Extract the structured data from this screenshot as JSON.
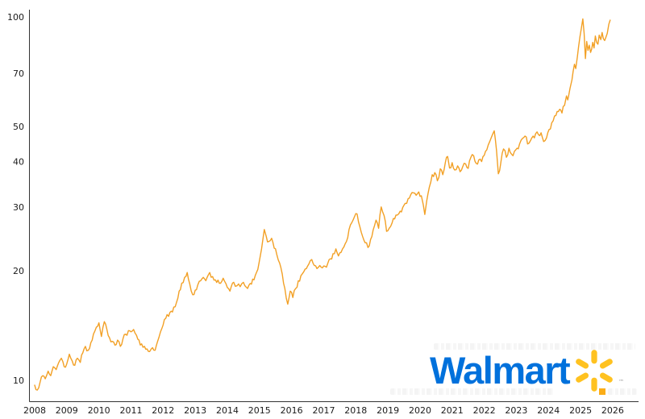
{
  "chart_data": {
    "type": "line",
    "title": "",
    "xlabel": "",
    "ylabel": "",
    "y_scale": "log",
    "grid": false,
    "legend_position": "none",
    "x_ticks": [
      2008,
      2009,
      2010,
      2011,
      2012,
      2013,
      2014,
      2015,
      2016,
      2017,
      2018,
      2019,
      2020,
      2021,
      2022,
      2023,
      2024,
      2025,
      2026
    ],
    "y_ticks": [
      10,
      20,
      30,
      40,
      50,
      70,
      100
    ],
    "xlim": [
      2007.82,
      2026.15
    ],
    "ylim": [
      8.8,
      105
    ],
    "axis_color": "#333333",
    "series": [
      {
        "name": "Walmart",
        "color": "#F2A025",
        "points": [
          [
            2008.0,
            9.7
          ],
          [
            2008.08,
            9.4
          ],
          [
            2008.17,
            9.9
          ],
          [
            2008.25,
            10.3
          ],
          [
            2008.33,
            10.1
          ],
          [
            2008.42,
            10.6
          ],
          [
            2008.5,
            10.3
          ],
          [
            2008.58,
            10.9
          ],
          [
            2008.67,
            10.7
          ],
          [
            2008.75,
            11.2
          ],
          [
            2008.83,
            11.5
          ],
          [
            2008.92,
            10.9
          ],
          [
            2009.0,
            11.1
          ],
          [
            2009.08,
            11.8
          ],
          [
            2009.17,
            11.3
          ],
          [
            2009.25,
            11.0
          ],
          [
            2009.33,
            11.5
          ],
          [
            2009.42,
            11.2
          ],
          [
            2009.5,
            11.9
          ],
          [
            2009.58,
            12.4
          ],
          [
            2009.67,
            12.1
          ],
          [
            2009.75,
            12.7
          ],
          [
            2009.83,
            13.4
          ],
          [
            2009.92,
            14.0
          ],
          [
            2010.0,
            14.4
          ],
          [
            2010.08,
            13.2
          ],
          [
            2010.17,
            14.5
          ],
          [
            2010.25,
            13.8
          ],
          [
            2010.33,
            13.1
          ],
          [
            2010.42,
            12.8
          ],
          [
            2010.5,
            12.5
          ],
          [
            2010.58,
            12.9
          ],
          [
            2010.67,
            12.4
          ],
          [
            2010.75,
            13.0
          ],
          [
            2010.83,
            13.4
          ],
          [
            2010.92,
            13.7
          ],
          [
            2011.0,
            13.6
          ],
          [
            2011.08,
            13.8
          ],
          [
            2011.17,
            13.3
          ],
          [
            2011.25,
            12.9
          ],
          [
            2011.33,
            12.6
          ],
          [
            2011.42,
            12.4
          ],
          [
            2011.5,
            12.2
          ],
          [
            2011.58,
            12.0
          ],
          [
            2011.67,
            12.3
          ],
          [
            2011.75,
            12.1
          ],
          [
            2011.83,
            12.8
          ],
          [
            2011.92,
            13.6
          ],
          [
            2012.0,
            14.2
          ],
          [
            2012.08,
            14.8
          ],
          [
            2012.17,
            15.0
          ],
          [
            2012.25,
            15.5
          ],
          [
            2012.33,
            15.9
          ],
          [
            2012.42,
            16.4
          ],
          [
            2012.5,
            17.6
          ],
          [
            2012.58,
            18.5
          ],
          [
            2012.67,
            19.2
          ],
          [
            2012.75,
            19.8
          ],
          [
            2012.83,
            18.4
          ],
          [
            2012.92,
            17.2
          ],
          [
            2013.0,
            17.7
          ],
          [
            2013.08,
            18.3
          ],
          [
            2013.17,
            18.8
          ],
          [
            2013.25,
            19.2
          ],
          [
            2013.33,
            18.8
          ],
          [
            2013.45,
            19.8
          ],
          [
            2013.54,
            19.3
          ],
          [
            2013.63,
            18.9
          ],
          [
            2013.75,
            18.5
          ],
          [
            2013.87,
            19.1
          ],
          [
            2014.0,
            18.0
          ],
          [
            2014.08,
            17.6
          ],
          [
            2014.2,
            18.6
          ],
          [
            2014.3,
            18.2
          ],
          [
            2014.4,
            18.1
          ],
          [
            2014.5,
            18.6
          ],
          [
            2014.63,
            17.9
          ],
          [
            2014.75,
            18.4
          ],
          [
            2014.83,
            18.9
          ],
          [
            2014.95,
            20.2
          ],
          [
            2015.03,
            22.1
          ],
          [
            2015.1,
            24.2
          ],
          [
            2015.15,
            26.0
          ],
          [
            2015.21,
            24.9
          ],
          [
            2015.29,
            24.1
          ],
          [
            2015.38,
            24.6
          ],
          [
            2015.46,
            23.1
          ],
          [
            2015.54,
            22.2
          ],
          [
            2015.63,
            21.0
          ],
          [
            2015.71,
            19.6
          ],
          [
            2015.79,
            17.9
          ],
          [
            2015.88,
            16.2
          ],
          [
            2015.96,
            17.6
          ],
          [
            2016.04,
            16.9
          ],
          [
            2016.13,
            17.9
          ],
          [
            2016.21,
            18.8
          ],
          [
            2016.29,
            19.4
          ],
          [
            2016.38,
            19.9
          ],
          [
            2016.46,
            20.3
          ],
          [
            2016.54,
            20.9
          ],
          [
            2016.63,
            21.5
          ],
          [
            2016.71,
            20.7
          ],
          [
            2016.79,
            20.3
          ],
          [
            2016.88,
            20.7
          ],
          [
            2016.96,
            20.4
          ],
          [
            2017.04,
            20.6
          ],
          [
            2017.13,
            21.0
          ],
          [
            2017.21,
            21.6
          ],
          [
            2017.29,
            22.3
          ],
          [
            2017.38,
            23.0
          ],
          [
            2017.46,
            22.0
          ],
          [
            2017.54,
            22.5
          ],
          [
            2017.63,
            23.3
          ],
          [
            2017.71,
            24.1
          ],
          [
            2017.79,
            26.0
          ],
          [
            2017.88,
            27.2
          ],
          [
            2017.96,
            28.2
          ],
          [
            2018.04,
            28.7
          ],
          [
            2018.13,
            26.4
          ],
          [
            2018.21,
            24.9
          ],
          [
            2018.29,
            23.9
          ],
          [
            2018.38,
            23.2
          ],
          [
            2018.46,
            24.4
          ],
          [
            2018.54,
            25.9
          ],
          [
            2018.63,
            27.6
          ],
          [
            2018.71,
            26.2
          ],
          [
            2018.79,
            30.0
          ],
          [
            2018.88,
            28.4
          ],
          [
            2018.96,
            25.7
          ],
          [
            2019.04,
            26.2
          ],
          [
            2019.13,
            27.1
          ],
          [
            2019.21,
            27.8
          ],
          [
            2019.29,
            28.5
          ],
          [
            2019.38,
            29.2
          ],
          [
            2019.46,
            29.9
          ],
          [
            2019.54,
            30.7
          ],
          [
            2019.63,
            31.6
          ],
          [
            2019.71,
            32.4
          ],
          [
            2019.79,
            32.8
          ],
          [
            2019.88,
            32.3
          ],
          [
            2019.96,
            33.0
          ],
          [
            2020.04,
            32.2
          ],
          [
            2020.1,
            30.5
          ],
          [
            2020.15,
            28.6
          ],
          [
            2020.21,
            31.2
          ],
          [
            2020.29,
            34.0
          ],
          [
            2020.38,
            36.8
          ],
          [
            2020.46,
            37.3
          ],
          [
            2020.54,
            35.4
          ],
          [
            2020.63,
            38.2
          ],
          [
            2020.71,
            36.8
          ],
          [
            2020.79,
            39.8
          ],
          [
            2020.86,
            41.3
          ],
          [
            2020.92,
            38.4
          ],
          [
            2021.0,
            39.7
          ],
          [
            2021.08,
            37.9
          ],
          [
            2021.17,
            38.9
          ],
          [
            2021.25,
            37.5
          ],
          [
            2021.33,
            38.7
          ],
          [
            2021.42,
            39.4
          ],
          [
            2021.5,
            38.3
          ],
          [
            2021.58,
            41.0
          ],
          [
            2021.67,
            41.5
          ],
          [
            2021.75,
            39.5
          ],
          [
            2021.83,
            40.4
          ],
          [
            2021.92,
            40.0
          ],
          [
            2022.0,
            41.6
          ],
          [
            2022.08,
            43.1
          ],
          [
            2022.17,
            45.4
          ],
          [
            2022.25,
            47.3
          ],
          [
            2022.31,
            48.6
          ],
          [
            2022.38,
            43.0
          ],
          [
            2022.44,
            37.0
          ],
          [
            2022.52,
            39.9
          ],
          [
            2022.6,
            43.3
          ],
          [
            2022.69,
            41.1
          ],
          [
            2022.77,
            43.5
          ],
          [
            2022.85,
            41.9
          ],
          [
            2022.94,
            42.7
          ],
          [
            2023.02,
            43.5
          ],
          [
            2023.1,
            44.7
          ],
          [
            2023.19,
            46.3
          ],
          [
            2023.27,
            47.0
          ],
          [
            2023.35,
            44.7
          ],
          [
            2023.44,
            45.7
          ],
          [
            2023.52,
            47.0
          ],
          [
            2023.6,
            47.7
          ],
          [
            2023.69,
            47.4
          ],
          [
            2023.77,
            48.0
          ],
          [
            2023.85,
            45.4
          ],
          [
            2023.94,
            46.5
          ],
          [
            2024.02,
            49.0
          ],
          [
            2024.1,
            51.1
          ],
          [
            2024.19,
            53.4
          ],
          [
            2024.27,
            54.9
          ],
          [
            2024.35,
            55.7
          ],
          [
            2024.42,
            54.4
          ],
          [
            2024.5,
            57.1
          ],
          [
            2024.56,
            60.6
          ],
          [
            2024.6,
            59.1
          ],
          [
            2024.67,
            63.6
          ],
          [
            2024.73,
            67.1
          ],
          [
            2024.77,
            70.9
          ],
          [
            2024.81,
            74.1
          ],
          [
            2024.85,
            72.1
          ],
          [
            2024.9,
            77.6
          ],
          [
            2024.94,
            83.1
          ],
          [
            2024.98,
            88.1
          ],
          [
            2025.02,
            92.6
          ],
          [
            2025.07,
            98.8
          ],
          [
            2025.11,
            90.1
          ],
          [
            2025.15,
            76.8
          ],
          [
            2025.19,
            85.6
          ],
          [
            2025.23,
            80.9
          ],
          [
            2025.27,
            83.6
          ],
          [
            2025.31,
            79.9
          ],
          [
            2025.38,
            85.1
          ],
          [
            2025.42,
            82.1
          ],
          [
            2025.46,
            88.6
          ],
          [
            2025.5,
            85.1
          ],
          [
            2025.54,
            84.1
          ],
          [
            2025.58,
            89.1
          ],
          [
            2025.63,
            86.6
          ],
          [
            2025.67,
            90.6
          ],
          [
            2025.71,
            87.1
          ],
          [
            2025.75,
            86.1
          ],
          [
            2025.79,
            88.0
          ],
          [
            2025.83,
            90.1
          ],
          [
            2025.88,
            95.6
          ],
          [
            2025.92,
            98.0
          ]
        ]
      }
    ]
  },
  "branding": {
    "wordmark": "Walmart",
    "wordmark_color": "#0071DC",
    "spark_color": "#FFC220",
    "trademark": "™"
  },
  "watermark": {
    "swatch_color": "#FBAD18"
  }
}
